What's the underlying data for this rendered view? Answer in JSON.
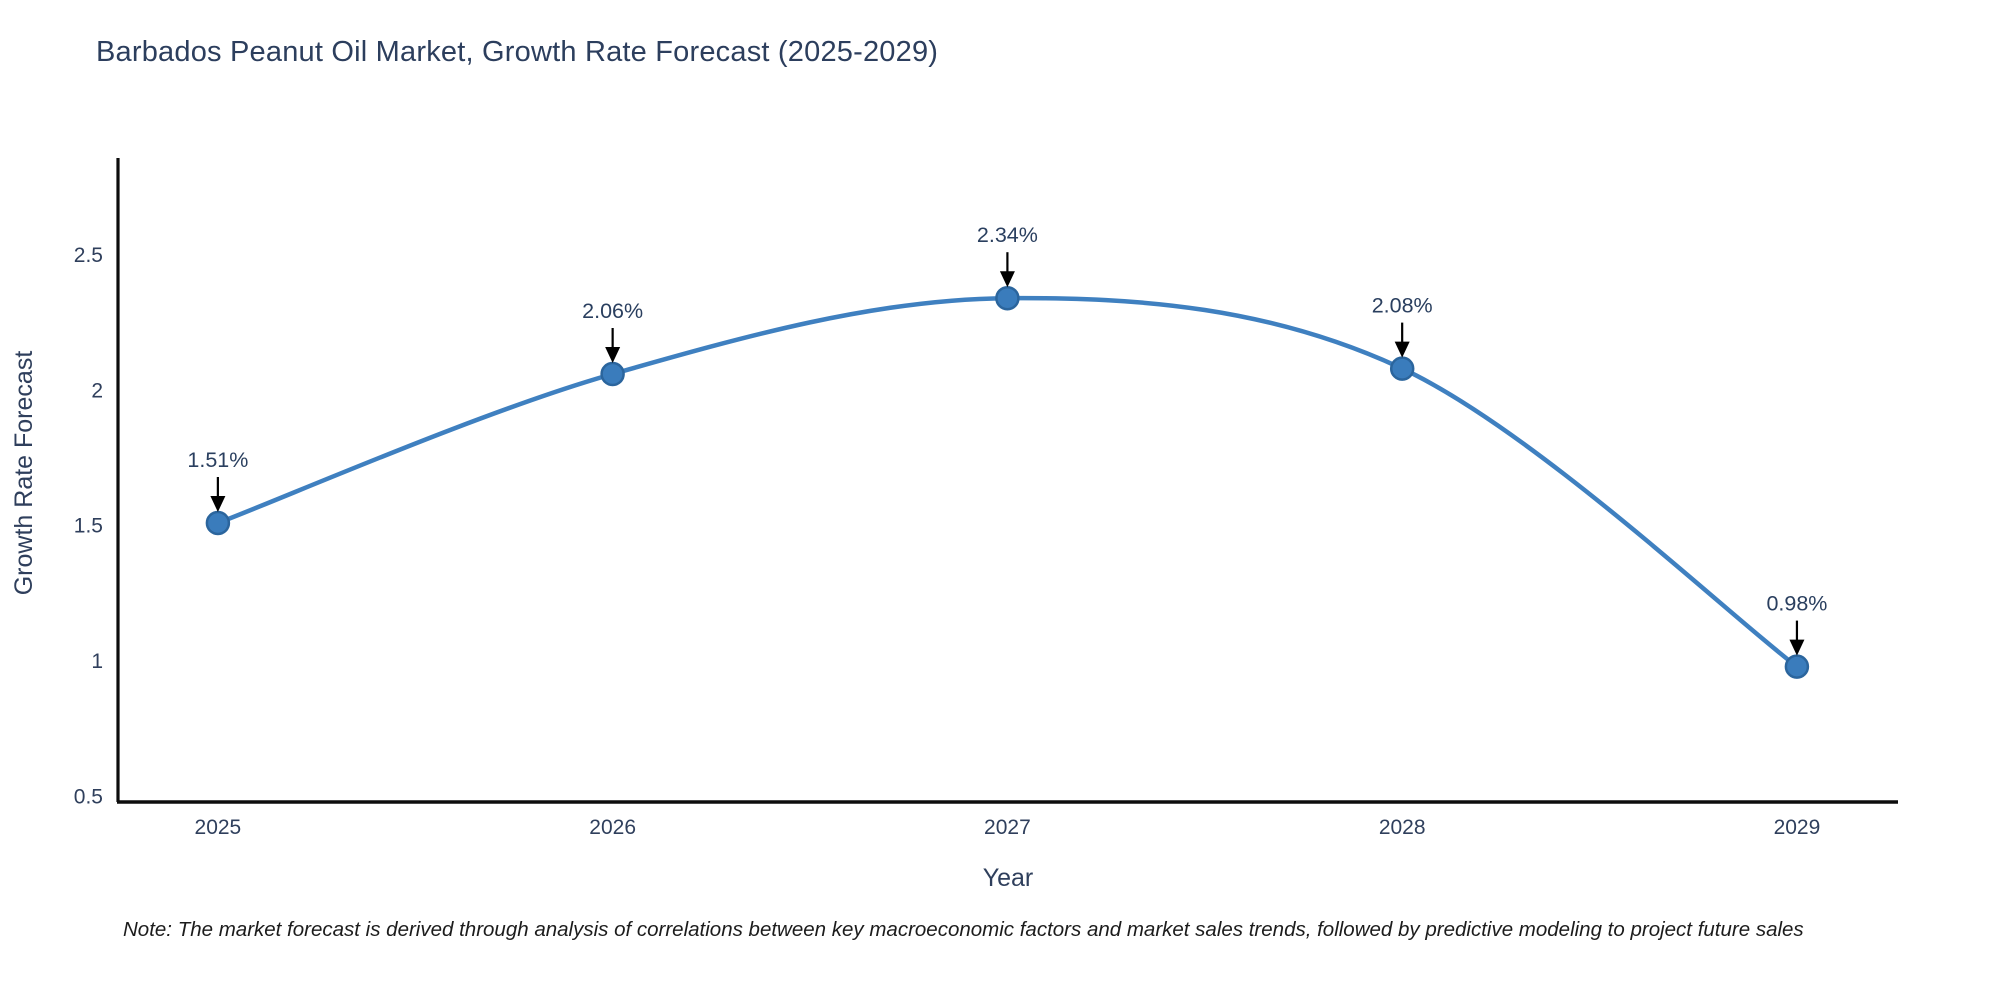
{
  "title": "Barbados Peanut Oil Market, Growth Rate Forecast (2025-2029)",
  "note": "Note: The market forecast is derived through analysis of correlations between key macroeconomic factors and market sales trends, followed by predictive modeling to project future sales",
  "colors": {
    "background": "#ffffff",
    "title_text": "#2c3e5d",
    "axis_text": "#2f3f5c",
    "spine": "#0d0d0d",
    "line": "#3f80c0",
    "marker": "#3a7cbc",
    "marker_edge": "#2b659d",
    "arrow": "#000000",
    "annotation_text": "#2a3f5f"
  },
  "chart_data": {
    "type": "line",
    "title": "Barbados Peanut Oil Market, Growth Rate Forecast (2025-2029)",
    "x": [
      2025,
      2026,
      2027,
      2028,
      2029
    ],
    "y": [
      1.51,
      2.06,
      2.34,
      2.08,
      0.98
    ],
    "labels": [
      "1.51%",
      "2.06%",
      "2.34%",
      "2.08%",
      "0.98%"
    ],
    "xlabel": "Year",
    "ylabel": "Growth Rate Forecast",
    "x_ticks": [
      "2025",
      "2026",
      "2027",
      "2028",
      "2029"
    ],
    "y_ticks": [
      "0.5",
      "1",
      "1.5",
      "2",
      "2.5"
    ],
    "y_tick_values": [
      0.5,
      1,
      1.5,
      2,
      2.5
    ],
    "xlim": [
      2024.747,
      2029.256
    ],
    "ylim": [
      0.48,
      2.85
    ],
    "line_shape": "spline",
    "grid": false,
    "legend": false,
    "annotation_style": "value label with downward arrow to each point"
  }
}
